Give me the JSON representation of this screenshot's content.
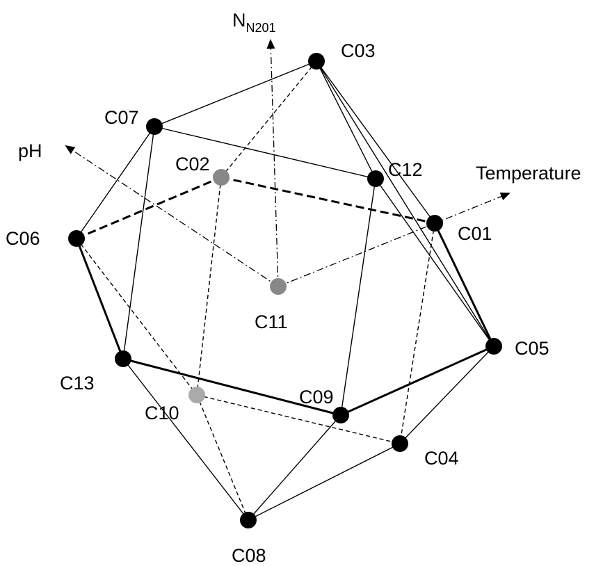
{
  "axes": {
    "n_main": "N",
    "n_sub": "N201",
    "ph": "pH",
    "temperature": "Temperature"
  },
  "nodes": {
    "c01": "C01",
    "c02": "C02",
    "c03": "C03",
    "c04": "C04",
    "c05": "C05",
    "c06": "C06",
    "c07": "C07",
    "c08": "C08",
    "c09": "C09",
    "c10": "C10",
    "c11": "C11",
    "c12": "C12",
    "c13": "C13"
  },
  "colors": {
    "front_node": "#000000",
    "back_node": "#888888",
    "back_node_light": "#aaaaaa",
    "line": "#000000"
  }
}
